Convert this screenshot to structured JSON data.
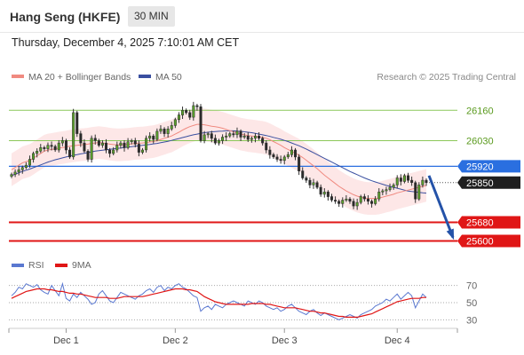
{
  "header": {
    "title": "Hang Seng (HKFE)",
    "interval": "30 MIN",
    "datetime": "Thursday, December 4, 2025 7:10:01 AM CET"
  },
  "legend": {
    "ma20_label": "MA 20 + Bollinger Bands",
    "ma50_label": "MA 50",
    "credit": "Research © 2025 Trading Central",
    "rsi_label": "RSI",
    "rsi_ma_label": "9MA"
  },
  "colors": {
    "ma20": "#f08a80",
    "ma50": "#3a4fa0",
    "bollinger_fill": "#fde3e3",
    "resistance": "#8cc85a",
    "resistance_label": "#5a9a1e",
    "pivot": "#2a6fe0",
    "support": "#e01616",
    "last_price": "#1f1f1f",
    "rsi": "#5a78d0",
    "rsi_ma": "#e01616",
    "forecast_arrow": "#2452a8"
  },
  "chart_data": {
    "type": "candlestick",
    "x_ticks": [
      "Dec 1",
      "Dec 2",
      "Dec 3",
      "Dec 4"
    ],
    "levels": {
      "resistance": [
        26160,
        26030
      ],
      "pivot": 25920,
      "last_price": 25850,
      "support": [
        25680,
        25600
      ]
    },
    "level_labels": {
      "r1": "26160",
      "r2": "26030",
      "pivot": "25920",
      "last": "25850",
      "s1": "25680",
      "s2": "25600"
    },
    "forecast": {
      "from": 25880,
      "to": 25600
    },
    "close_series": [
      25885,
      25895,
      25905,
      25915,
      25925,
      25950,
      25975,
      25985,
      26000,
      25995,
      26010,
      26005,
      25990,
      26020,
      26030,
      25990,
      25960,
      26150,
      26060,
      26020,
      25985,
      25950,
      26040,
      26030,
      26010,
      26020,
      25990,
      25975,
      25990,
      26010,
      26020,
      26000,
      26025,
      26030,
      26015,
      25980,
      25990,
      26040,
      26050,
      26035,
      26070,
      26080,
      26060,
      26080,
      26095,
      26120,
      26140,
      26160,
      26150,
      26130,
      26180,
      26175,
      26030,
      26055,
      26060,
      26040,
      26020,
      26030,
      26045,
      26050,
      26060,
      26055,
      26070,
      26045,
      26050,
      26035,
      26040,
      26050,
      26040,
      26020,
      25990,
      25970,
      25960,
      25950,
      25945,
      25960,
      25970,
      25990,
      25960,
      25900,
      25870,
      25860,
      25840,
      25850,
      25830,
      25800,
      25810,
      25790,
      25775,
      25770,
      25760,
      25775,
      25780,
      25770,
      25750,
      25765,
      25790,
      25780,
      25770,
      25760,
      25780,
      25810,
      25815,
      25820,
      25830,
      25840,
      25870,
      25855,
      25880,
      25860,
      25850,
      25780,
      25840,
      25860,
      25850
    ],
    "ma20_series": [
      25905,
      25915,
      25925,
      25935,
      25940,
      25945,
      25955,
      25965,
      25975,
      25985,
      25990,
      25992,
      25995,
      25998,
      26000,
      26003,
      26006,
      26008,
      26010,
      26012,
      26013,
      26015,
      26018,
      26020,
      26022,
      26020,
      26018,
      26015,
      26013,
      26012,
      26012,
      26013,
      26014,
      26016,
      26018,
      26019,
      26020,
      26022,
      26024,
      26026,
      26030,
      26035,
      26040,
      26045,
      26050,
      26058,
      26066,
      26075,
      26083,
      26090,
      26095,
      26100,
      26100,
      26098,
      26095,
      26092,
      26090,
      26087,
      26083,
      26078,
      26073,
      26068,
      26063,
      26058,
      26055,
      26052,
      26050,
      26048,
      26046,
      26044,
      26040,
      26034,
      26026,
      26018,
      26010,
      26000,
      25992,
      25984,
      25976,
      25968,
      25958,
      25946,
      25934,
      25922,
      25910,
      25896,
      25882,
      25870,
      25858,
      25846,
      25834,
      25824,
      25814,
      25806,
      25798,
      25792,
      25788,
      25784,
      25782,
      25782,
      25782,
      25784,
      25788,
      25792,
      25796,
      25800,
      25806,
      25810,
      25814,
      25818,
      25822,
      25826,
      25830,
      25834,
      25838
    ],
    "ma50_series": [
      25880,
      25886,
      25892,
      25898,
      25903,
      25908,
      25914,
      25920,
      25926,
      25932,
      25938,
      25943,
      25948,
      25952,
      25956,
      25960,
      25964,
      25967,
      25970,
      25973,
      25976,
      25979,
      25982,
      25985,
      25987,
      25989,
      25991,
      25993,
      25995,
      25997,
      25998,
      26000,
      26002,
      26004,
      26006,
      26008,
      26010,
      26012,
      26014,
      26016,
      26018,
      26021,
      26024,
      26027,
      26031,
      26035,
      26039,
      26043,
      26047,
      26051,
      26055,
      26058,
      26061,
      26064,
      26066,
      26068,
      26069,
      26070,
      26071,
      26072,
      26072,
      26072,
      26071,
      26070,
      26068,
      26066,
      26064,
      26061,
      26058,
      26055,
      26052,
      26048,
      26044,
      26040,
      26036,
      26031,
      26026,
      26020,
      26014,
      26008,
      26001,
      25994,
      25986,
      25978,
      25970,
      25962,
      25954,
      25946,
      25938,
      25930,
      25922,
      25914,
      25906,
      25898,
      25891,
      25884,
      25877,
      25870,
      25864,
      25858,
      25853,
      25848,
      25843,
      25838,
      25834,
      25830,
      25826,
      25822,
      25818,
      25814,
      25812,
      25810,
      25808,
      25806,
      25805
    ],
    "rsi_series": [
      58,
      62,
      68,
      66,
      72,
      70,
      68,
      71,
      65,
      62,
      60,
      70,
      64,
      58,
      72,
      55,
      52,
      60,
      56,
      62,
      58,
      54,
      48,
      50,
      60,
      64,
      58,
      52,
      50,
      56,
      62,
      60,
      58,
      56,
      54,
      58,
      60,
      64,
      66,
      62,
      68,
      70,
      64,
      68,
      66,
      70,
      72,
      68,
      66,
      62,
      58,
      56,
      40,
      44,
      46,
      42,
      48,
      46,
      44,
      48,
      50,
      52,
      50,
      48,
      46,
      52,
      50,
      48,
      52,
      50,
      46,
      44,
      42,
      44,
      40,
      42,
      46,
      48,
      44,
      40,
      38,
      36,
      40,
      42,
      38,
      35,
      38,
      36,
      34,
      32,
      30,
      32,
      34,
      36,
      34,
      32,
      36,
      38,
      40,
      42,
      46,
      48,
      50,
      54,
      52,
      56,
      60,
      54,
      58,
      62,
      58,
      44,
      52,
      60,
      56
    ],
    "rsi_ma_series": [
      55,
      57,
      59,
      61,
      63,
      64,
      65,
      66,
      66,
      66,
      65,
      65,
      64,
      63,
      63,
      62,
      61,
      61,
      60,
      60,
      59,
      58,
      57,
      56,
      56,
      56,
      56,
      55,
      55,
      55,
      56,
      57,
      57,
      57,
      57,
      57,
      57,
      58,
      59,
      60,
      61,
      62,
      63,
      64,
      65,
      66,
      66,
      66,
      65,
      65,
      64,
      63,
      60,
      57,
      55,
      53,
      51,
      50,
      49,
      48,
      48,
      48,
      48,
      48,
      48,
      48,
      49,
      49,
      49,
      49,
      48,
      48,
      47,
      46,
      45,
      44,
      44,
      44,
      44,
      43,
      42,
      41,
      40,
      40,
      39,
      38,
      38,
      37,
      36,
      35,
      34,
      34,
      33,
      33,
      33,
      33,
      34,
      35,
      36,
      37,
      39,
      41,
      43,
      45,
      47,
      49,
      51,
      52,
      53,
      54,
      55,
      55,
      55,
      56,
      56
    ],
    "rsi_levels": [
      70,
      50,
      30
    ],
    "rsi_level_labels": [
      "70",
      "50",
      "30"
    ],
    "price_range": [
      25560,
      26260
    ],
    "rsi_range": [
      20,
      80
    ]
  }
}
